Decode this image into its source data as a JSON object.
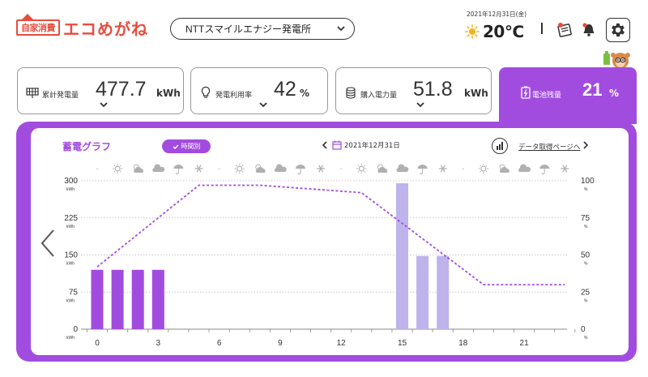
{
  "header": {
    "logo_sub": "自家消費",
    "logo_main": "エコめがね",
    "provider": "NTTスマイルエナジー発電所",
    "date": "2021年12月31日(金)",
    "weather_icon": "sun-icon",
    "temperature": "20℃",
    "separator": "|"
  },
  "cards": [
    {
      "label": "累計発電量",
      "value": "477.7",
      "unit": "kWh",
      "icon": "solar-panel-icon"
    },
    {
      "label": "発電利用率",
      "value": "42",
      "unit": "%",
      "icon": "lightbulb-icon"
    },
    {
      "label": "購入電力量",
      "value": "51.8",
      "unit": "kWh",
      "icon": "coins-icon"
    },
    {
      "label": "電池残量",
      "value": "21",
      "unit": "%",
      "icon": "battery-icon"
    }
  ],
  "graph": {
    "title": "蓄電グラフ",
    "toggle_label": "時間別",
    "date": "2021年12月31日",
    "data_link": "データ取得ページへ",
    "weather_row": [
      "-",
      "sun",
      "cloud-sun",
      "cloud",
      "umbrella",
      "snow",
      "-",
      "sun",
      "cloud-sun",
      "cloud",
      "umbrella",
      "snow",
      "-",
      "sun",
      "cloud-sun",
      "cloud",
      "umbrella",
      "snow",
      "-",
      "sun",
      "cloud-sun",
      "cloud",
      "umbrella",
      "snow"
    ],
    "weather_dash": "-"
  },
  "chart_data": {
    "type": "bar",
    "x_ticks": [
      "0",
      "3",
      "6",
      "9",
      "12",
      "15",
      "18",
      "21"
    ],
    "y_left_ticks": [
      "300",
      "225",
      "150",
      "75",
      "0"
    ],
    "y_left_unit": "kWh",
    "y_right_ticks": [
      "100",
      "75",
      "50",
      "25",
      "0"
    ],
    "y_right_unit": "%",
    "ylim_left": [
      0,
      300
    ],
    "ylim_right": [
      0,
      100
    ],
    "bars": [
      {
        "hour": 0,
        "value": 120,
        "kind": "discharge"
      },
      {
        "hour": 1,
        "value": 120,
        "kind": "discharge"
      },
      {
        "hour": 2,
        "value": 120,
        "kind": "discharge"
      },
      {
        "hour": 3,
        "value": 120,
        "kind": "discharge"
      },
      {
        "hour": 15,
        "value": 295,
        "kind": "charge"
      },
      {
        "hour": 16,
        "value": 148,
        "kind": "charge"
      },
      {
        "hour": 17,
        "value": 148,
        "kind": "charge"
      }
    ],
    "line": [
      {
        "hour": 0,
        "value": 42
      },
      {
        "hour": 5,
        "value": 97
      },
      {
        "hour": 8,
        "value": 97
      },
      {
        "hour": 13,
        "value": 92
      },
      {
        "hour": 19,
        "value": 30
      },
      {
        "hour": 23,
        "value": 30
      }
    ],
    "colors": {
      "discharge": "#a24cdf",
      "charge": "#bfb3ec",
      "line": "#a24cdf",
      "accent": "#a24cdf"
    }
  }
}
